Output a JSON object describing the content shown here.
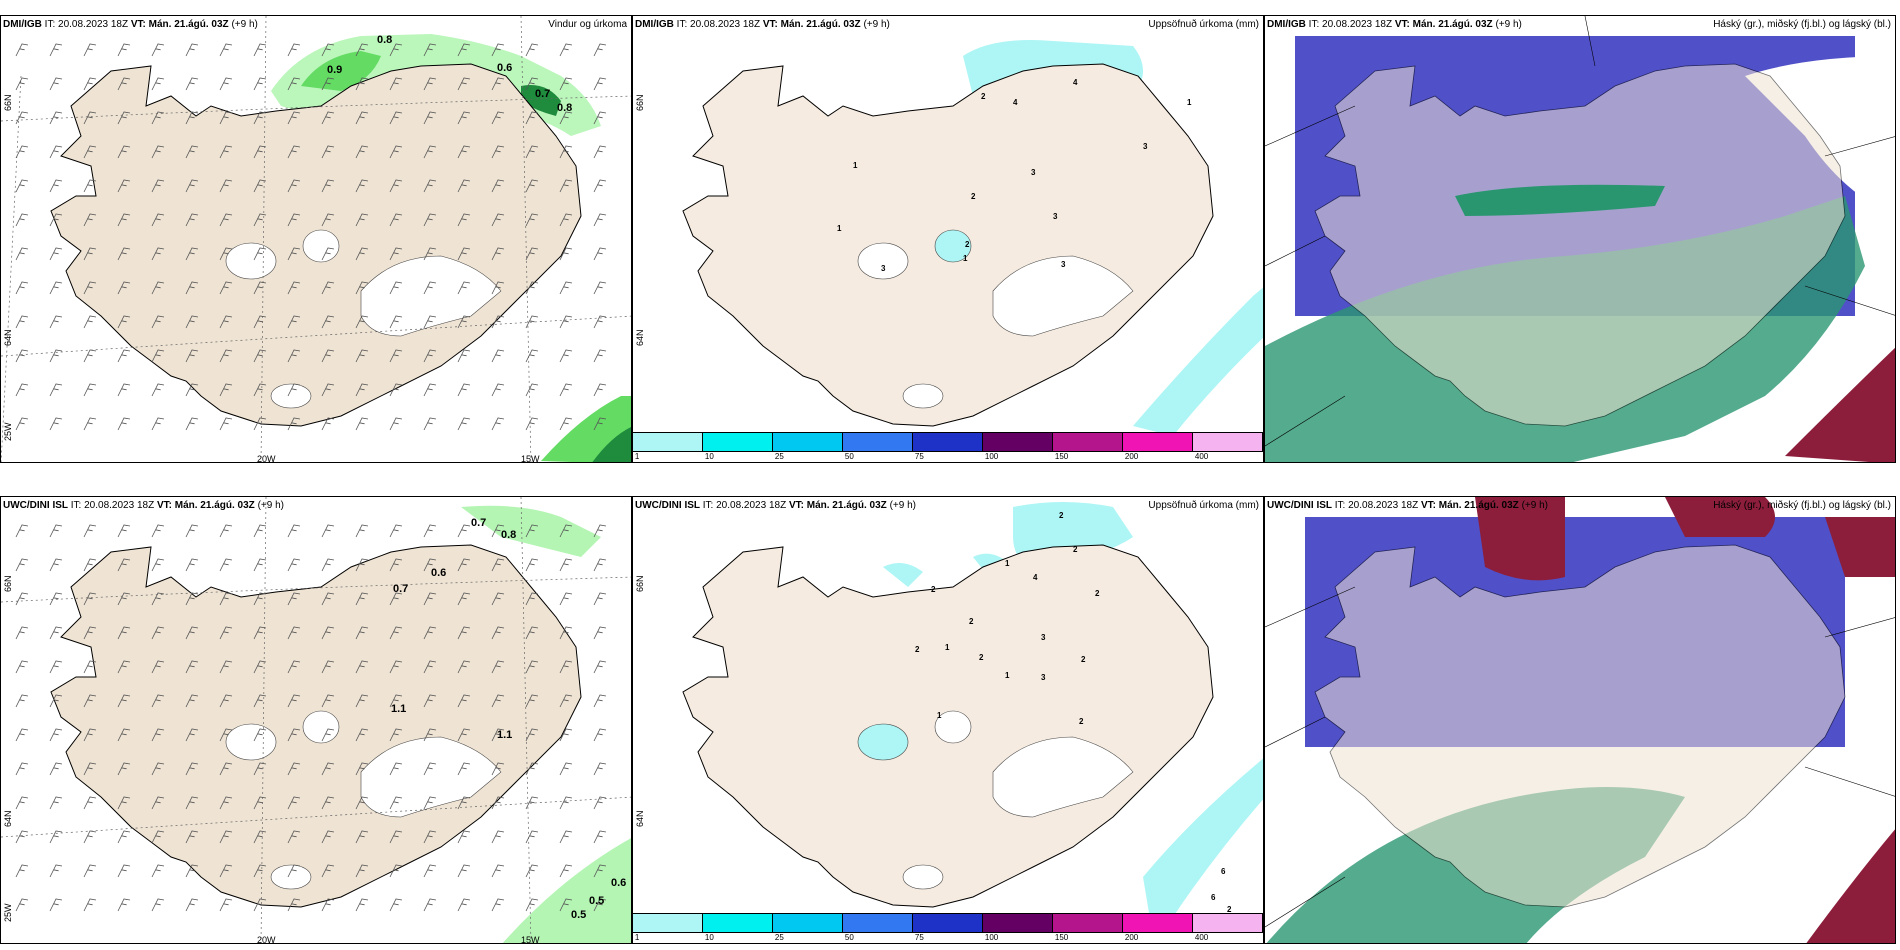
{
  "panels": [
    {
      "model": "DMI/IGB",
      "it_label": "IT:",
      "it_value": "20.08.2023 18Z",
      "vt_label": "VT:",
      "vt_value": "Mán. 21.ágú. 03Z",
      "lead": "(+9 h)",
      "title": "Vindur og úrkoma",
      "kind": "wind",
      "labels": [
        "0.8",
        "0.9",
        "0.6",
        "0.7",
        "0.8"
      ],
      "ticks_x": [
        "20W",
        "15W"
      ],
      "ticks_y": [
        "66N",
        "64N",
        "25W"
      ]
    },
    {
      "model": "DMI/IGB",
      "it_label": "IT:",
      "it_value": "20.08.2023 18Z",
      "vt_label": "VT:",
      "vt_value": "Mán. 21.ágú. 03Z",
      "lead": "(+9 h)",
      "title": "Uppsöfnuð úrkoma (mm)",
      "kind": "precip",
      "labels": [
        "4",
        "2",
        "4",
        "3",
        "3",
        "1",
        "2",
        "1",
        "3",
        "1",
        "2",
        "3",
        "3",
        "1"
      ],
      "ticks_y": [
        "66N",
        "64N"
      ]
    },
    {
      "model": "DMI/IGB",
      "it_label": "IT:",
      "it_value": "20.08.2023 18Z",
      "vt_label": "VT:",
      "vt_value": "Mán. 21.ágú. 03Z",
      "lead": "(+9 h)",
      "title": "Háský (gr.), miðský (fj.bl.) og lágský (bl.)",
      "kind": "cloud"
    },
    {
      "model": "UWC/DINI ISL",
      "it_label": "IT:",
      "it_value": "20.08.2023 18Z",
      "vt_label": "VT:",
      "vt_value": "Mán. 21.ágú. 03Z",
      "lead": "(+9 h)",
      "title": "",
      "kind": "wind",
      "labels": [
        "0.7",
        "0.8",
        "0.6",
        "0.7",
        "1.1",
        "1.1",
        "0.6",
        "0.5",
        "0.5"
      ],
      "ticks_x": [
        "20W",
        "15W"
      ],
      "ticks_y": [
        "66N",
        "64N",
        "25W"
      ]
    },
    {
      "model": "UWC/DINI ISL",
      "it_label": "IT:",
      "it_value": "20.08.2023 18Z",
      "vt_label": "VT:",
      "vt_value": "Mán. 21.ágú. 03Z",
      "lead": "(+9 h)",
      "title": "Uppsöfnuð úrkoma (mm)",
      "kind": "precip",
      "labels": [
        "2",
        "2",
        "1",
        "4",
        "2",
        "2",
        "3",
        "2",
        "1",
        "2",
        "2",
        "1",
        "2",
        "3",
        "1",
        "2",
        "6",
        "6",
        "2"
      ],
      "ticks_y": [
        "66N",
        "64N"
      ]
    },
    {
      "model": "UWC/DINI ISL",
      "it_label": "IT:",
      "it_value": "20.08.2023 18Z",
      "vt_label": "VT:",
      "vt_value": "Mán. 21.ágú. 03Z",
      "lead": "(+9 h)",
      "title": "Háský (gr.), miðský (fj.bl.) og lágský (bl.)",
      "kind": "cloud"
    }
  ],
  "colorbar": {
    "labels": [
      "1",
      "10",
      "25",
      "50",
      "75",
      "100",
      "150",
      "200",
      "400"
    ],
    "colors": [
      "#aef5f5",
      "#00f0f0",
      "#00c8f0",
      "#3278f0",
      "#1e32c8",
      "#640064",
      "#b4148c",
      "#f014b4",
      "#f5b4f0"
    ]
  },
  "colors": {
    "land": "#efe3d3",
    "land_alt": "#f5ebe0",
    "precip_light": "#b4f5b4",
    "precip_mid": "#64dc64",
    "precip_dark": "#1e8c3c",
    "cloud_high": "#2a9670",
    "cloud_mid": "#5050c8",
    "cloud_low": "#8c1e3c"
  }
}
